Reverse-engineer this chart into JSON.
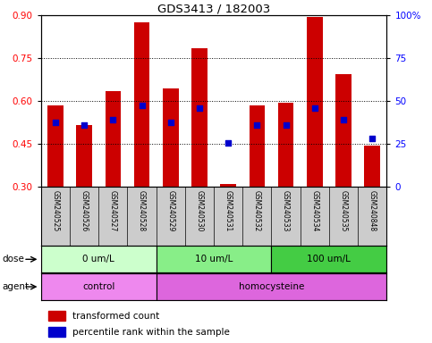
{
  "title": "GDS3413 / 182003",
  "samples": [
    "GSM240525",
    "GSM240526",
    "GSM240527",
    "GSM240528",
    "GSM240529",
    "GSM240530",
    "GSM240531",
    "GSM240532",
    "GSM240533",
    "GSM240534",
    "GSM240535",
    "GSM240848"
  ],
  "transformed_count": [
    0.585,
    0.515,
    0.635,
    0.875,
    0.645,
    0.785,
    0.31,
    0.585,
    0.595,
    0.895,
    0.695,
    0.445
  ],
  "percentile_rank": [
    0.525,
    0.515,
    0.535,
    0.585,
    0.525,
    0.575,
    0.455,
    0.515,
    0.515,
    0.575,
    0.535,
    0.47
  ],
  "bar_bottom": 0.3,
  "ylim_left": [
    0.3,
    0.9
  ],
  "ylim_right": [
    0,
    100
  ],
  "yticks_left": [
    0.3,
    0.45,
    0.6,
    0.75,
    0.9
  ],
  "yticks_right": [
    0,
    25,
    50,
    75,
    100
  ],
  "bar_color": "#cc0000",
  "dot_color": "#0000cc",
  "dose_groups": [
    {
      "label": "0 um/L",
      "start": 0,
      "end": 4,
      "color": "#ccffcc"
    },
    {
      "label": "10 um/L",
      "start": 4,
      "end": 8,
      "color": "#88ee88"
    },
    {
      "label": "100 um/L",
      "start": 8,
      "end": 12,
      "color": "#44cc44"
    }
  ],
  "agent_groups": [
    {
      "label": "control",
      "start": 0,
      "end": 4,
      "color": "#ee88ee"
    },
    {
      "label": "homocysteine",
      "start": 4,
      "end": 12,
      "color": "#dd66dd"
    }
  ],
  "dose_label": "dose",
  "agent_label": "agent",
  "legend_bar_label": "transformed count",
  "legend_dot_label": "percentile rank within the sample",
  "background_color": "#ffffff",
  "tick_area_color": "#cccccc"
}
